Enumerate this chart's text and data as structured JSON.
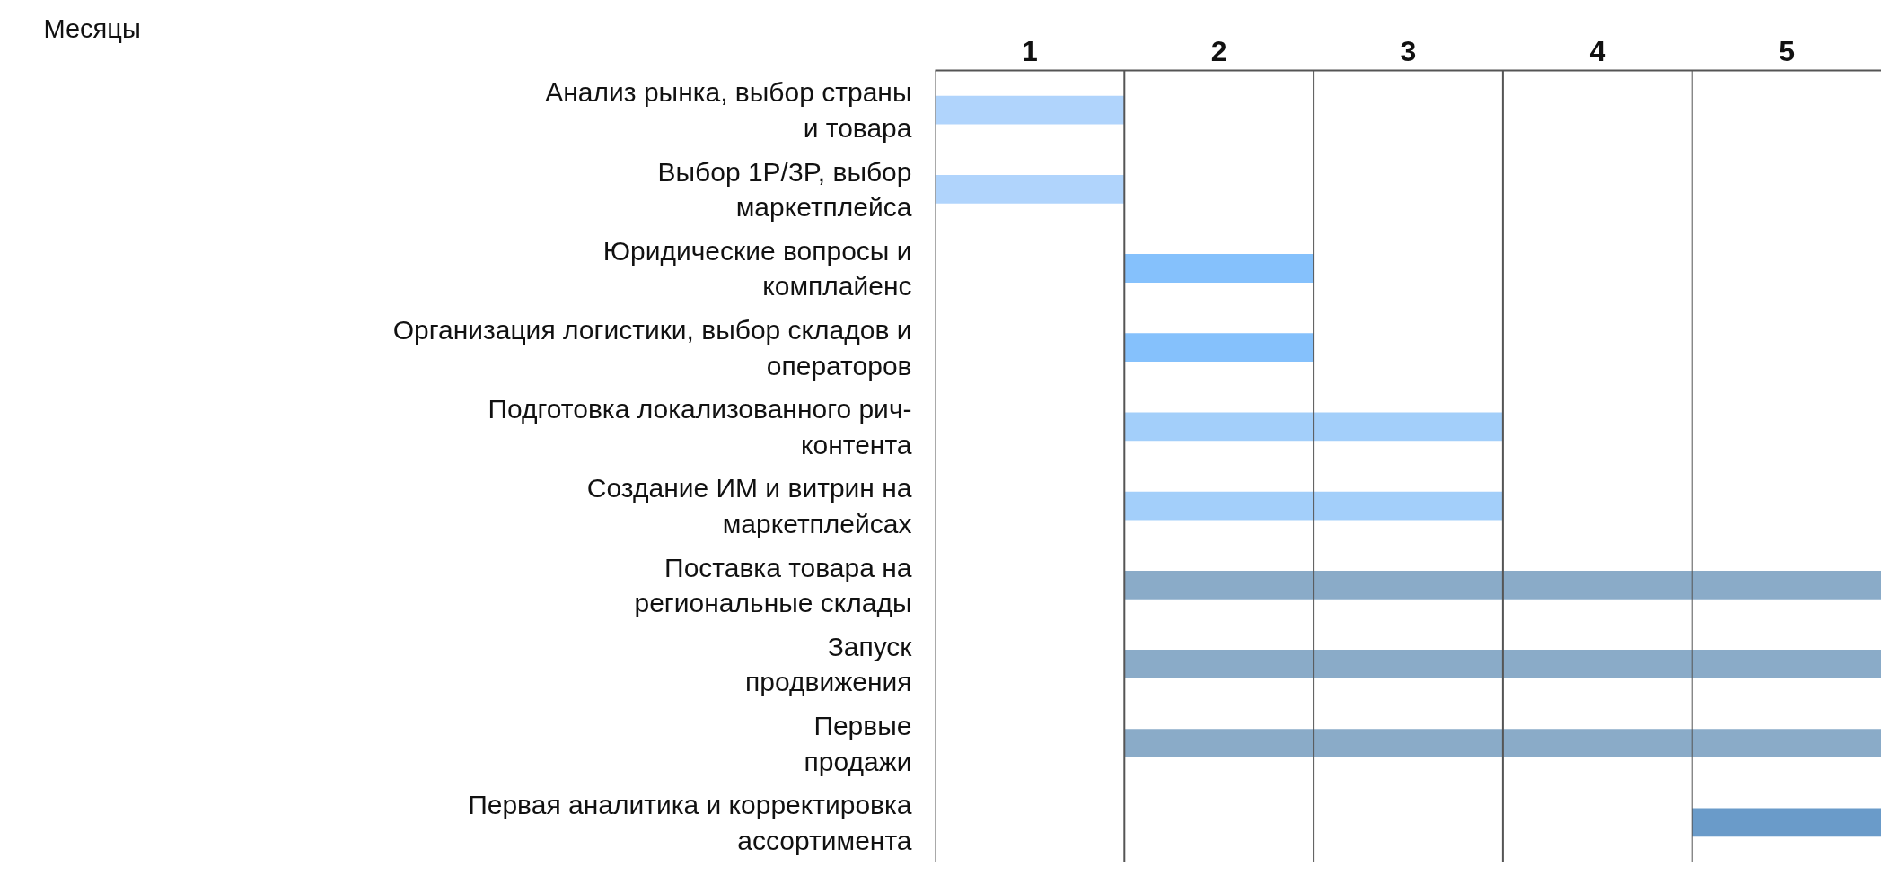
{
  "chart_data": {
    "type": "bar",
    "orientation": "horizontal",
    "annotations": [
      "Месяцы"
    ],
    "categories": [
      "Анализ рынка, выбор страны\nи товара",
      "Выбор 1P/3P, выбор\nмаркетплейса",
      "Юридические вопросы и\nкомплайенс",
      "Организация логистики, выбор складов и\nоператоров",
      "Подготовка локализованного рич-\nконтента",
      "Создание ИМ и витрин на\nмаркетплейсах",
      "Поставка товара на\nрегиональные склады",
      "Запуск\nпродвижения",
      "Первые\nпродажи",
      "Первая аналитика и корректировка\nассортимента"
    ],
    "base": [
      0,
      0,
      1,
      1,
      1,
      1,
      1,
      1,
      1,
      4
    ],
    "values": [
      1,
      1,
      1,
      1,
      2,
      2,
      4,
      4,
      4,
      1
    ],
    "colors": [
      "#b0d4fc",
      "#b0d4fc",
      "#85c1fc",
      "#85c1fc",
      "#a3cffa",
      "#a3cffa",
      "#8aabc8",
      "#8aabc8",
      "#8aabc8",
      "#6a9bc9"
    ],
    "xlim": [
      0,
      5
    ],
    "xticks": [
      {
        "value": 0.5,
        "label": "1"
      },
      {
        "value": 1.5,
        "label": "2"
      },
      {
        "value": 2.5,
        "label": "3"
      },
      {
        "value": 3.5,
        "label": "4"
      },
      {
        "value": 4.5,
        "label": "5"
      }
    ],
    "ref_lines": [
      {
        "axis": "x",
        "value": 0,
        "color": "#555555"
      },
      {
        "axis": "x",
        "value": 1,
        "color": "#555555"
      },
      {
        "axis": "x",
        "value": 2,
        "color": "#555555"
      },
      {
        "axis": "x",
        "value": 3,
        "color": "#555555"
      },
      {
        "axis": "x",
        "value": 4,
        "color": "#555555"
      }
    ],
    "grid": false
  }
}
